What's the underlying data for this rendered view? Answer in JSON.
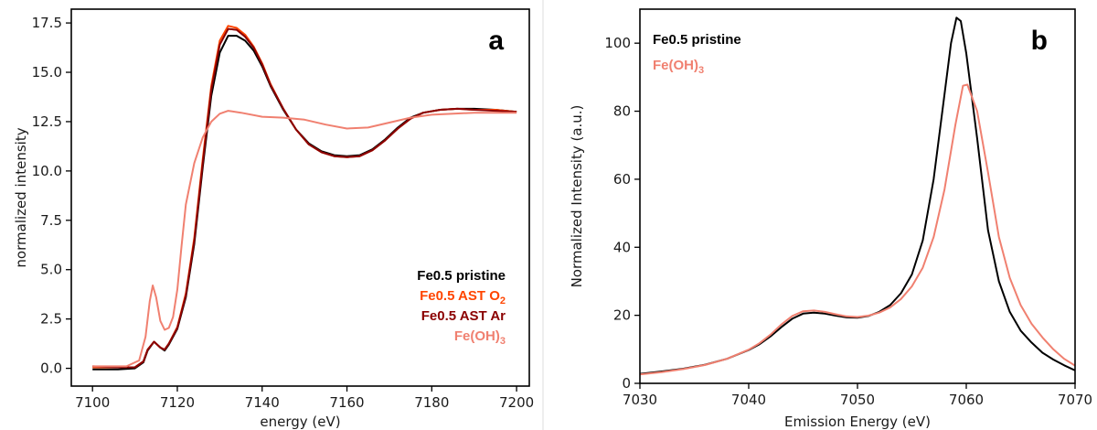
{
  "chart_data": [
    {
      "panel": "a",
      "type": "line",
      "xlabel": "energy (eV)",
      "ylabel": "normalized intensity",
      "xlim": [
        7095,
        7203
      ],
      "ylim": [
        -0.9,
        18.2
      ],
      "xticks": [
        7100,
        7120,
        7140,
        7160,
        7180,
        7200
      ],
      "yticks": [
        0.0,
        2.5,
        5.0,
        7.5,
        10.0,
        12.5,
        15.0,
        17.5
      ],
      "ytick_labels": [
        "0.0",
        "2.5",
        "5.0",
        "7.5",
        "10.0",
        "12.5",
        "15.0",
        "17.5"
      ],
      "grid": false,
      "legend_position": "bottom-right",
      "series": [
        {
          "name": "Fe0.5 pristine",
          "name_main": "Fe0.5 pristine",
          "name_sub": "",
          "color": "#000000",
          "points": [
            [
              7100,
              -0.05
            ],
            [
              7106,
              -0.05
            ],
            [
              7110,
              0.0
            ],
            [
              7112,
              0.3
            ],
            [
              7113,
              0.9
            ],
            [
              7114.5,
              1.35
            ],
            [
              7116,
              1.05
            ],
            [
              7117,
              0.9
            ],
            [
              7118,
              1.2
            ],
            [
              7120,
              2.0
            ],
            [
              7122,
              3.6
            ],
            [
              7124,
              6.3
            ],
            [
              7126,
              10.2
            ],
            [
              7128,
              13.8
            ],
            [
              7130,
              16.0
            ],
            [
              7132,
              16.85
            ],
            [
              7134,
              16.85
            ],
            [
              7136,
              16.6
            ],
            [
              7138,
              16.1
            ],
            [
              7140,
              15.3
            ],
            [
              7142,
              14.3
            ],
            [
              7145,
              13.1
            ],
            [
              7148,
              12.1
            ],
            [
              7151,
              11.4
            ],
            [
              7154,
              11.0
            ],
            [
              7157,
              10.8
            ],
            [
              7160,
              10.75
            ],
            [
              7163,
              10.8
            ],
            [
              7166,
              11.1
            ],
            [
              7169,
              11.6
            ],
            [
              7172,
              12.2
            ],
            [
              7175,
              12.7
            ],
            [
              7178,
              12.95
            ],
            [
              7182,
              13.1
            ],
            [
              7186,
              13.15
            ],
            [
              7190,
              13.15
            ],
            [
              7195,
              13.1
            ],
            [
              7200,
              13.0
            ]
          ]
        },
        {
          "name": "Fe0.5 AST O2",
          "name_main": "Fe0.5 AST O",
          "name_sub": "2",
          "color": "#ff4500",
          "points": [
            [
              7100,
              0.05
            ],
            [
              7106,
              0.05
            ],
            [
              7110,
              0.05
            ],
            [
              7112,
              0.35
            ],
            [
              7113,
              0.95
            ],
            [
              7114.5,
              1.35
            ],
            [
              7116,
              1.05
            ],
            [
              7117,
              0.95
            ],
            [
              7118,
              1.25
            ],
            [
              7120,
              2.1
            ],
            [
              7122,
              3.8
            ],
            [
              7124,
              6.6
            ],
            [
              7126,
              10.6
            ],
            [
              7128,
              14.3
            ],
            [
              7130,
              16.6
            ],
            [
              7132,
              17.35
            ],
            [
              7134,
              17.25
            ],
            [
              7136,
              16.9
            ],
            [
              7138,
              16.3
            ],
            [
              7140,
              15.45
            ],
            [
              7142,
              14.4
            ],
            [
              7145,
              13.15
            ],
            [
              7148,
              12.1
            ],
            [
              7151,
              11.35
            ],
            [
              7154,
              10.95
            ],
            [
              7157,
              10.75
            ],
            [
              7160,
              10.7
            ],
            [
              7163,
              10.75
            ],
            [
              7166,
              11.05
            ],
            [
              7169,
              11.55
            ],
            [
              7172,
              12.15
            ],
            [
              7175,
              12.65
            ],
            [
              7178,
              12.95
            ],
            [
              7182,
              13.1
            ],
            [
              7186,
              13.15
            ],
            [
              7190,
              13.1
            ],
            [
              7195,
              13.1
            ],
            [
              7200,
              13.0
            ]
          ]
        },
        {
          "name": "Fe0.5 AST Ar",
          "name_main": "Fe0.5 AST Ar",
          "name_sub": "",
          "color": "#8b0000",
          "points": [
            [
              7100,
              0.1
            ],
            [
              7106,
              0.05
            ],
            [
              7110,
              0.05
            ],
            [
              7112,
              0.35
            ],
            [
              7113,
              0.95
            ],
            [
              7114.5,
              1.35
            ],
            [
              7116,
              1.05
            ],
            [
              7117,
              0.95
            ],
            [
              7118,
              1.25
            ],
            [
              7120,
              2.05
            ],
            [
              7122,
              3.7
            ],
            [
              7124,
              6.45
            ],
            [
              7126,
              10.4
            ],
            [
              7128,
              14.1
            ],
            [
              7130,
              16.4
            ],
            [
              7132,
              17.2
            ],
            [
              7134,
              17.15
            ],
            [
              7136,
              16.8
            ],
            [
              7138,
              16.25
            ],
            [
              7140,
              15.4
            ],
            [
              7142,
              14.35
            ],
            [
              7145,
              13.15
            ],
            [
              7148,
              12.1
            ],
            [
              7151,
              11.35
            ],
            [
              7154,
              10.95
            ],
            [
              7157,
              10.75
            ],
            [
              7160,
              10.7
            ],
            [
              7163,
              10.75
            ],
            [
              7166,
              11.05
            ],
            [
              7169,
              11.55
            ],
            [
              7172,
              12.15
            ],
            [
              7175,
              12.65
            ],
            [
              7178,
              12.95
            ],
            [
              7182,
              13.1
            ],
            [
              7186,
              13.15
            ],
            [
              7190,
              13.1
            ],
            [
              7195,
              13.05
            ],
            [
              7200,
              13.0
            ]
          ]
        },
        {
          "name": "Fe(OH)3",
          "name_main": "Fe(OH)",
          "name_sub": "3",
          "color": "#f08070",
          "points": [
            [
              7100,
              0.1
            ],
            [
              7108,
              0.1
            ],
            [
              7111,
              0.4
            ],
            [
              7112.5,
              1.6
            ],
            [
              7113.5,
              3.4
            ],
            [
              7114.2,
              4.2
            ],
            [
              7115,
              3.6
            ],
            [
              7116,
              2.4
            ],
            [
              7117,
              1.95
            ],
            [
              7118,
              2.05
            ],
            [
              7119,
              2.6
            ],
            [
              7120,
              4.0
            ],
            [
              7121,
              6.2
            ],
            [
              7122,
              8.3
            ],
            [
              7124,
              10.4
            ],
            [
              7126,
              11.7
            ],
            [
              7128,
              12.5
            ],
            [
              7130,
              12.9
            ],
            [
              7132,
              13.05
            ],
            [
              7135,
              12.95
            ],
            [
              7140,
              12.75
            ],
            [
              7145,
              12.7
            ],
            [
              7150,
              12.6
            ],
            [
              7155,
              12.35
            ],
            [
              7160,
              12.15
            ],
            [
              7165,
              12.2
            ],
            [
              7170,
              12.45
            ],
            [
              7175,
              12.7
            ],
            [
              7180,
              12.85
            ],
            [
              7190,
              12.95
            ],
            [
              7200,
              12.95
            ]
          ]
        }
      ]
    },
    {
      "panel": "b",
      "type": "line",
      "xlabel": "Emission Energy (eV)",
      "ylabel": "Normalized Intensity (a.u.)",
      "xlim": [
        7030,
        7070
      ],
      "ylim": [
        0,
        110
      ],
      "xticks": [
        7030,
        7040,
        7050,
        7060,
        7070
      ],
      "yticks": [
        0,
        20,
        40,
        60,
        80,
        100
      ],
      "ytick_labels": [
        "0",
        "20",
        "40",
        "60",
        "80",
        "100"
      ],
      "grid": false,
      "legend_position": "top-left",
      "series": [
        {
          "name": "Fe0.5 pristine",
          "name_main": "Fe0.5 pristine",
          "name_sub": "",
          "color": "#000000",
          "points": [
            [
              7030,
              2.8
            ],
            [
              7032,
              3.5
            ],
            [
              7034,
              4.3
            ],
            [
              7036,
              5.5
            ],
            [
              7038,
              7.2
            ],
            [
              7040,
              9.8
            ],
            [
              7041,
              11.5
            ],
            [
              7042,
              13.8
            ],
            [
              7043,
              16.5
            ],
            [
              7044,
              19.0
            ],
            [
              7045,
              20.5
            ],
            [
              7046,
              20.8
            ],
            [
              7047,
              20.5
            ],
            [
              7048,
              19.9
            ],
            [
              7049,
              19.4
            ],
            [
              7050,
              19.3
            ],
            [
              7051,
              19.8
            ],
            [
              7052,
              21.0
            ],
            [
              7053,
              23.0
            ],
            [
              7054,
              26.5
            ],
            [
              7055,
              32.0
            ],
            [
              7056,
              42.0
            ],
            [
              7057,
              60.0
            ],
            [
              7058,
              85.0
            ],
            [
              7058.6,
              100.0
            ],
            [
              7059.1,
              107.5
            ],
            [
              7059.5,
              106.5
            ],
            [
              7060,
              97.0
            ],
            [
              7061,
              72.0
            ],
            [
              7062,
              45.0
            ],
            [
              7063,
              30.0
            ],
            [
              7064,
              21.0
            ],
            [
              7065,
              15.5
            ],
            [
              7066,
              12.0
            ],
            [
              7067,
              9.0
            ],
            [
              7068,
              7.0
            ],
            [
              7069,
              5.3
            ],
            [
              7070,
              3.8
            ]
          ]
        },
        {
          "name": "Fe(OH)3",
          "name_main": "Fe(OH)",
          "name_sub": "3",
          "color": "#f08070",
          "points": [
            [
              7030,
              2.6
            ],
            [
              7032,
              3.3
            ],
            [
              7034,
              4.2
            ],
            [
              7036,
              5.4
            ],
            [
              7038,
              7.2
            ],
            [
              7040,
              9.9
            ],
            [
              7041,
              11.8
            ],
            [
              7042,
              14.3
            ],
            [
              7043,
              17.3
            ],
            [
              7044,
              19.8
            ],
            [
              7045,
              21.2
            ],
            [
              7046,
              21.4
            ],
            [
              7047,
              21.0
            ],
            [
              7048,
              20.3
            ],
            [
              7049,
              19.7
            ],
            [
              7050,
              19.5
            ],
            [
              7051,
              19.9
            ],
            [
              7052,
              20.8
            ],
            [
              7053,
              22.3
            ],
            [
              7054,
              24.8
            ],
            [
              7055,
              28.5
            ],
            [
              7056,
              34.0
            ],
            [
              7057,
              43.0
            ],
            [
              7058,
              57.0
            ],
            [
              7059,
              76.0
            ],
            [
              7059.7,
              87.5
            ],
            [
              7060.1,
              87.8
            ],
            [
              7061,
              80.0
            ],
            [
              7062,
              62.0
            ],
            [
              7063,
              43.0
            ],
            [
              7064,
              31.0
            ],
            [
              7065,
              23.0
            ],
            [
              7066,
              17.5
            ],
            [
              7067,
              13.5
            ],
            [
              7068,
              10.0
            ],
            [
              7069,
              7.2
            ],
            [
              7070,
              5.2
            ]
          ]
        }
      ]
    }
  ]
}
